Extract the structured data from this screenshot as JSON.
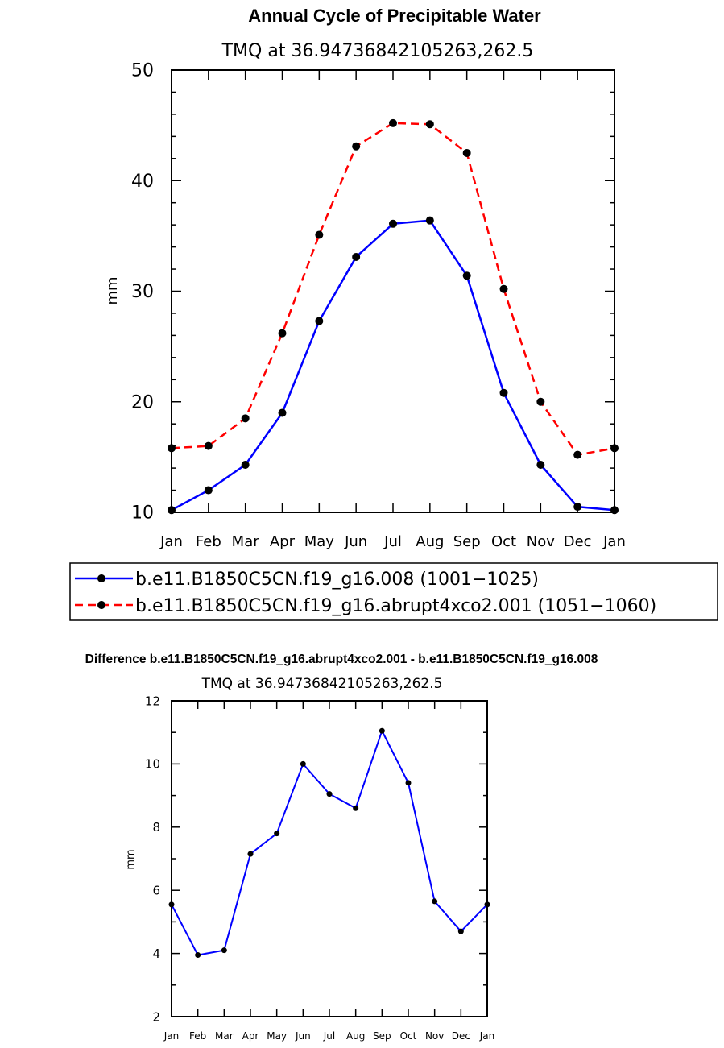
{
  "chart_data": [
    {
      "type": "line",
      "title": "Annual Cycle of Precipitable Water",
      "subtitle": "TMQ at 36.94736842105263,262.5",
      "ylabel": "mm",
      "xlabel": "",
      "ylim": [
        10,
        50
      ],
      "yticks": [
        "10",
        "20",
        "30",
        "40",
        "50"
      ],
      "categories": [
        "Jan",
        "Feb",
        "Mar",
        "Apr",
        "May",
        "Jun",
        "Jul",
        "Aug",
        "Sep",
        "Oct",
        "Nov",
        "Dec",
        "Jan"
      ],
      "grid": false,
      "legend_position": "bottom",
      "series": [
        {
          "name": "b.e11.B1850C5CN.f19_g16.008 (1001−1025)",
          "color": "#0000ff",
          "dash": "solid",
          "values": [
            10.2,
            12.0,
            14.3,
            19.0,
            27.3,
            33.1,
            36.1,
            36.4,
            31.4,
            20.8,
            14.3,
            10.5,
            10.2
          ]
        },
        {
          "name": "b.e11.B1850C5CN.f19_g16.abrupt4xco2.001 (1051−1060)",
          "color": "#ff0000",
          "dash": "dashed",
          "values": [
            15.8,
            16.0,
            18.5,
            26.2,
            35.1,
            43.1,
            45.2,
            45.1,
            42.5,
            30.2,
            20.0,
            15.2,
            15.8
          ]
        }
      ]
    },
    {
      "type": "line",
      "title": "Difference b.e11.B1850C5CN.f19_g16.abrupt4xco2.001 - b.e11.B1850C5CN.f19_g16.008",
      "subtitle": "TMQ at 36.94736842105263,262.5",
      "ylabel": "mm",
      "xlabel": "",
      "ylim": [
        2,
        12
      ],
      "yticks": [
        "2",
        "4",
        "6",
        "8",
        "10",
        "12"
      ],
      "categories": [
        "Jan",
        "Feb",
        "Mar",
        "Apr",
        "May",
        "Jun",
        "Jul",
        "Aug",
        "Sep",
        "Oct",
        "Nov",
        "Dec",
        "Jan"
      ],
      "grid": false,
      "series": [
        {
          "color": "#0000ff",
          "dash": "solid",
          "values": [
            5.55,
            3.95,
            4.1,
            7.15,
            7.8,
            10.0,
            9.05,
            8.6,
            11.05,
            9.4,
            5.65,
            4.7,
            5.55
          ]
        }
      ]
    }
  ]
}
